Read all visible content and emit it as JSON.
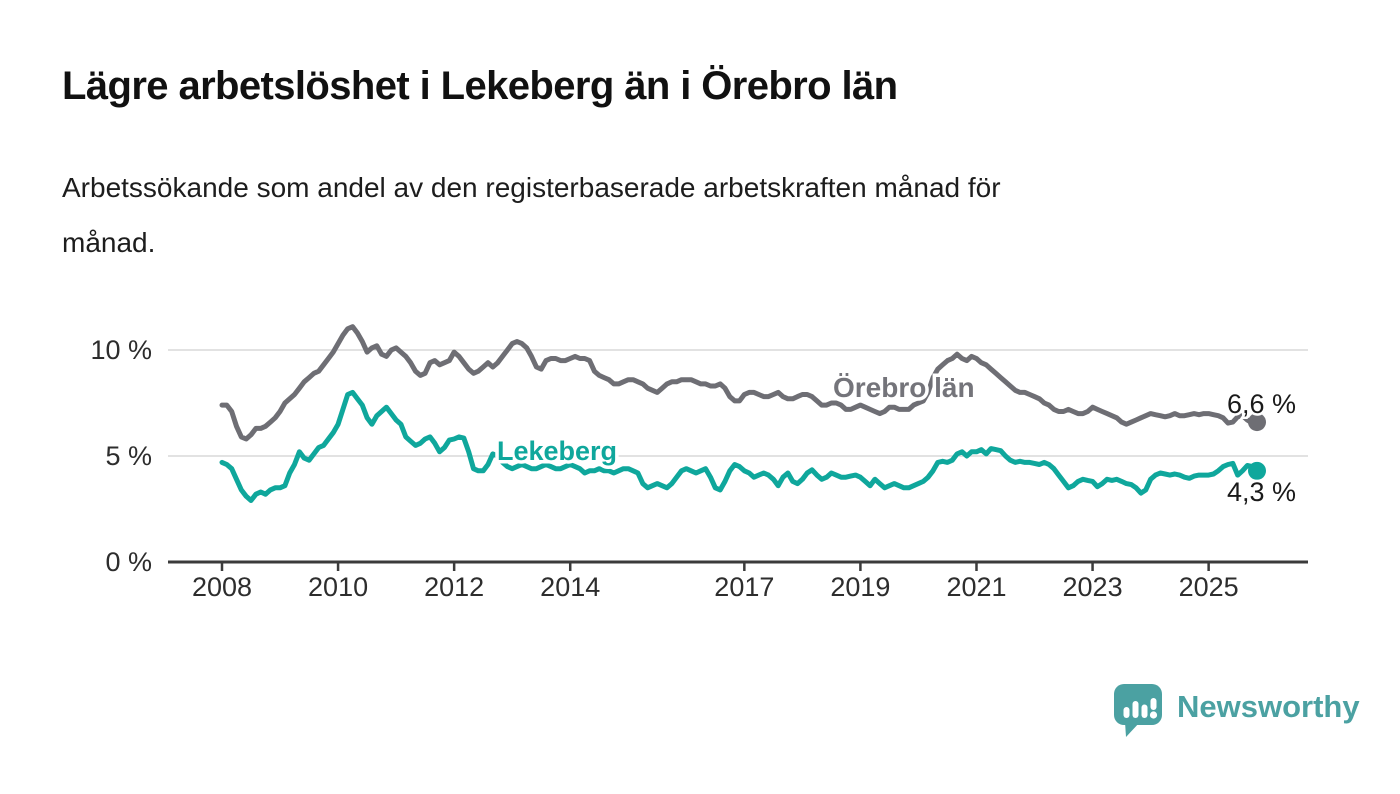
{
  "header": {
    "title": "Lägre arbetslöshet i Lekeberg än i Örebro län",
    "subtitle_lines": [
      "Arbetssökande som andel av den registerbaserade arbetskraften månad för",
      "månad."
    ]
  },
  "chart_data": {
    "type": "line",
    "unit": "%",
    "frequency": "monthly",
    "x_start": "2008-01",
    "x_end": "2025-11",
    "ylim": [
      0,
      11.9
    ],
    "grid": "horizontal",
    "legend_position": "inline-labels",
    "yticks": [
      {
        "value": 0,
        "label": "0 %"
      },
      {
        "value": 5,
        "label": "5 %"
      },
      {
        "value": 10,
        "label": "10 %"
      }
    ],
    "xticks": [
      {
        "year": 2008,
        "label": "2008"
      },
      {
        "year": 2010,
        "label": "2010"
      },
      {
        "year": 2012,
        "label": "2012"
      },
      {
        "year": 2014,
        "label": "2014"
      },
      {
        "year": 2017,
        "label": "2017"
      },
      {
        "year": 2019,
        "label": "2019"
      },
      {
        "year": 2021,
        "label": "2021"
      },
      {
        "year": 2023,
        "label": "2023"
      },
      {
        "year": 2025,
        "label": "2025"
      }
    ],
    "colors": {
      "axis": "#3B3B3B",
      "gridline": "#D9D9D9",
      "tick_text": "#2D2D2D",
      "value_text": "#1A1A1A",
      "orebro": "#6E6E74",
      "lekeberg": "#0FA79C"
    },
    "series": [
      {
        "name": "Örebro län",
        "color": "#6E6E74",
        "end_value": 6.6,
        "end_label": "6,6 %",
        "values": [
          7.4,
          7.4,
          7.1,
          6.4,
          5.9,
          5.8,
          6.0,
          6.3,
          6.3,
          6.4,
          6.6,
          6.8,
          7.1,
          7.5,
          7.7,
          7.9,
          8.2,
          8.5,
          8.7,
          8.9,
          9.0,
          9.3,
          9.6,
          9.9,
          10.3,
          10.7,
          11.0,
          11.1,
          10.8,
          10.4,
          9.9,
          10.1,
          10.2,
          9.8,
          9.7,
          10.0,
          10.1,
          9.9,
          9.7,
          9.4,
          9.0,
          8.8,
          8.9,
          9.4,
          9.5,
          9.3,
          9.4,
          9.5,
          9.9,
          9.7,
          9.4,
          9.1,
          8.9,
          9.0,
          9.2,
          9.4,
          9.2,
          9.4,
          9.7,
          10.0,
          10.3,
          10.4,
          10.3,
          10.1,
          9.7,
          9.2,
          9.1,
          9.5,
          9.6,
          9.6,
          9.5,
          9.5,
          9.6,
          9.7,
          9.6,
          9.6,
          9.5,
          9.0,
          8.8,
          8.7,
          8.6,
          8.4,
          8.4,
          8.5,
          8.6,
          8.6,
          8.5,
          8.4,
          8.2,
          8.1,
          8.0,
          8.2,
          8.4,
          8.5,
          8.5,
          8.6,
          8.6,
          8.6,
          8.5,
          8.4,
          8.4,
          8.3,
          8.3,
          8.4,
          8.2,
          7.8,
          7.6,
          7.6,
          7.9,
          8.0,
          8.0,
          7.9,
          7.8,
          7.8,
          7.9,
          8.0,
          7.8,
          7.7,
          7.7,
          7.8,
          7.9,
          7.9,
          7.8,
          7.6,
          7.4,
          7.4,
          7.5,
          7.5,
          7.4,
          7.2,
          7.2,
          7.3,
          7.4,
          7.3,
          7.2,
          7.1,
          7.0,
          7.1,
          7.3,
          7.3,
          7.2,
          7.2,
          7.2,
          7.4,
          7.5,
          7.6,
          8.0,
          8.7,
          9.1,
          9.3,
          9.5,
          9.6,
          9.8,
          9.6,
          9.5,
          9.7,
          9.6,
          9.4,
          9.3,
          9.1,
          8.9,
          8.7,
          8.5,
          8.3,
          8.1,
          8.0,
          8.0,
          7.9,
          7.8,
          7.7,
          7.5,
          7.4,
          7.2,
          7.1,
          7.1,
          7.2,
          7.1,
          7.0,
          7.0,
          7.1,
          7.3,
          7.2,
          7.1,
          7.0,
          6.9,
          6.8,
          6.6,
          6.5,
          6.6,
          6.7,
          6.8,
          6.9,
          7.0,
          6.95,
          6.9,
          6.85,
          6.9,
          7.0,
          6.9,
          6.9,
          6.95,
          7.0,
          6.95,
          7.0,
          7.0,
          6.95,
          6.9,
          6.8,
          6.55,
          6.6,
          6.85,
          6.9,
          6.7,
          6.55,
          6.6
        ]
      },
      {
        "name": "Lekeberg",
        "color": "#0FA79C",
        "end_value": 4.3,
        "end_label": "4,3 %",
        "values": [
          4.7,
          4.6,
          4.4,
          3.9,
          3.4,
          3.1,
          2.9,
          3.2,
          3.3,
          3.2,
          3.4,
          3.5,
          3.5,
          3.6,
          4.2,
          4.6,
          5.2,
          4.9,
          4.8,
          5.1,
          5.4,
          5.5,
          5.8,
          6.1,
          6.5,
          7.2,
          7.9,
          8.0,
          7.7,
          7.4,
          6.8,
          6.5,
          6.9,
          7.1,
          7.3,
          7.0,
          6.7,
          6.5,
          5.9,
          5.7,
          5.5,
          5.6,
          5.8,
          5.9,
          5.6,
          5.2,
          5.4,
          5.75,
          5.8,
          5.9,
          5.85,
          5.2,
          4.4,
          4.3,
          4.3,
          4.6,
          5.1,
          5.0,
          4.7,
          4.5,
          4.4,
          4.5,
          4.6,
          4.5,
          4.4,
          4.4,
          4.5,
          4.6,
          4.5,
          4.4,
          4.4,
          4.5,
          4.6,
          4.5,
          4.4,
          4.2,
          4.3,
          4.3,
          4.4,
          4.3,
          4.3,
          4.2,
          4.3,
          4.4,
          4.4,
          4.3,
          4.2,
          3.7,
          3.5,
          3.6,
          3.7,
          3.6,
          3.5,
          3.7,
          4.0,
          4.3,
          4.4,
          4.3,
          4.2,
          4.3,
          4.4,
          4.0,
          3.5,
          3.4,
          3.8,
          4.3,
          4.6,
          4.5,
          4.3,
          4.2,
          4.0,
          4.1,
          4.2,
          4.1,
          3.9,
          3.6,
          4.0,
          4.2,
          3.8,
          3.7,
          3.9,
          4.2,
          4.35,
          4.1,
          3.9,
          4.0,
          4.2,
          4.1,
          4.0,
          4.0,
          4.05,
          4.1,
          4.0,
          3.8,
          3.6,
          3.9,
          3.7,
          3.5,
          3.6,
          3.7,
          3.6,
          3.5,
          3.5,
          3.6,
          3.7,
          3.8,
          4.0,
          4.3,
          4.7,
          4.75,
          4.7,
          4.8,
          5.1,
          5.2,
          5.0,
          5.2,
          5.2,
          5.3,
          5.1,
          5.35,
          5.3,
          5.25,
          5.0,
          4.8,
          4.7,
          4.75,
          4.7,
          4.7,
          4.65,
          4.6,
          4.7,
          4.6,
          4.4,
          4.1,
          3.8,
          3.5,
          3.6,
          3.8,
          3.9,
          3.85,
          3.8,
          3.55,
          3.7,
          3.9,
          3.85,
          3.9,
          3.8,
          3.7,
          3.65,
          3.5,
          3.25,
          3.4,
          3.9,
          4.1,
          4.2,
          4.15,
          4.1,
          4.15,
          4.1,
          4.0,
          3.95,
          4.05,
          4.1,
          4.1,
          4.1,
          4.15,
          4.3,
          4.5,
          4.6,
          4.65,
          4.1,
          4.3,
          4.55,
          4.5,
          4.3
        ]
      }
    ]
  },
  "footer": {
    "brand": "Newsworthy",
    "brand_color": "#4BA1A2",
    "logo_icon": "newsworthy-speech-bubble-bar-chart-icon"
  }
}
